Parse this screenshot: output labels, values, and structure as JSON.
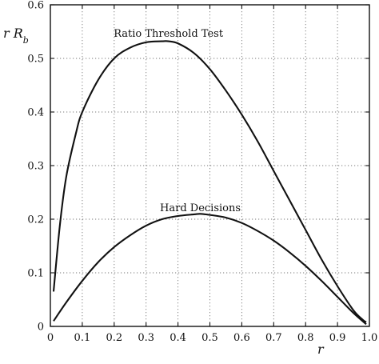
{
  "chart_data": {
    "type": "line",
    "ylabel": "r R_b",
    "xlabel": "r",
    "xlim": [
      0,
      1
    ],
    "ylim": [
      0,
      0.6
    ],
    "x_ticks": [
      0,
      0.1,
      0.2,
      0.3,
      0.4,
      0.5,
      0.6,
      0.7,
      0.8,
      0.9,
      1.0
    ],
    "x_tick_labels": [
      "0",
      "0.1",
      "0.2",
      "0.3",
      "0.4",
      "0.5",
      "0.6",
      "0.7",
      "0.8",
      "0.9",
      "1.0"
    ],
    "y_ticks": [
      0,
      0.1,
      0.2,
      0.3,
      0.4,
      0.5,
      0.6
    ],
    "y_tick_labels": [
      "0",
      "0.1",
      "0.2",
      "0.3",
      "0.4",
      "0.5",
      "0.6"
    ],
    "grid": true,
    "series": [
      {
        "name": "Ratio Threshold Test",
        "x": [
          0.01,
          0.03,
          0.05,
          0.08,
          0.1,
          0.15,
          0.2,
          0.25,
          0.3,
          0.35,
          0.37,
          0.4,
          0.45,
          0.5,
          0.55,
          0.6,
          0.65,
          0.7,
          0.75,
          0.8,
          0.85,
          0.9,
          0.95,
          0.98,
          0.99
        ],
        "y": [
          0.065,
          0.19,
          0.28,
          0.36,
          0.4,
          0.46,
          0.5,
          0.52,
          0.53,
          0.532,
          0.532,
          0.528,
          0.51,
          0.48,
          0.44,
          0.395,
          0.345,
          0.29,
          0.235,
          0.18,
          0.125,
          0.075,
          0.03,
          0.012,
          0.008
        ]
      },
      {
        "name": "Hard Decisions",
        "x": [
          0.01,
          0.05,
          0.1,
          0.15,
          0.2,
          0.25,
          0.3,
          0.35,
          0.4,
          0.45,
          0.47,
          0.5,
          0.55,
          0.6,
          0.65,
          0.7,
          0.75,
          0.8,
          0.85,
          0.9,
          0.95,
          0.99
        ],
        "y": [
          0.01,
          0.045,
          0.085,
          0.12,
          0.148,
          0.17,
          0.188,
          0.2,
          0.206,
          0.209,
          0.21,
          0.208,
          0.203,
          0.193,
          0.178,
          0.16,
          0.138,
          0.113,
          0.085,
          0.055,
          0.025,
          0.004
        ]
      }
    ],
    "annotations": [
      {
        "text": "Ratio Threshold Test",
        "x": 0.37,
        "y": 0.54
      },
      {
        "text": "Hard Decisions",
        "x": 0.47,
        "y": 0.215
      }
    ]
  }
}
